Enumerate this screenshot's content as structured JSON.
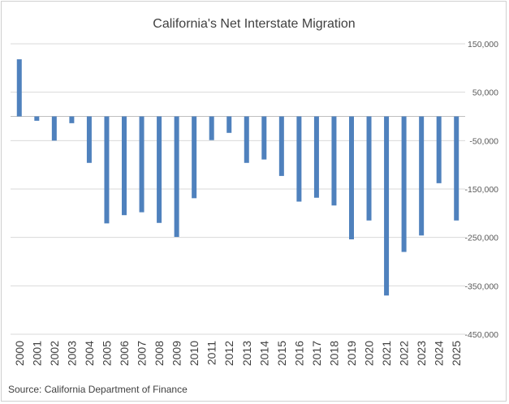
{
  "chart_data": {
    "type": "bar",
    "title": "California's Net Interstate Migration",
    "categories": [
      "2000",
      "2001",
      "2002",
      "2003",
      "2004",
      "2005",
      "2006",
      "2007",
      "2008",
      "2009",
      "2010",
      "2011",
      "2012",
      "2013",
      "2014",
      "2015",
      "2016",
      "2017",
      "2018",
      "2019",
      "2020",
      "2021",
      "2022",
      "2023",
      "2024",
      "2025"
    ],
    "values": [
      118000,
      -9000,
      -50000,
      -14000,
      -96000,
      -221000,
      -204000,
      -198000,
      -220000,
      -249000,
      -169000,
      -49000,
      -34000,
      -96000,
      -89000,
      -123000,
      -176000,
      -168000,
      -184000,
      -254000,
      -215000,
      -370000,
      -280000,
      -246000,
      -138000,
      -215000
    ],
    "ylim": [
      -450000,
      150000
    ],
    "yticks": [
      150000,
      50000,
      -50000,
      -150000,
      -250000,
      -350000,
      -450000
    ],
    "ytick_labels": [
      "150,000",
      "50,000",
      "-50,000",
      "-150,000",
      "-250,000",
      "-350,000",
      "-450,000"
    ],
    "grid": true,
    "y_axis_side": "right",
    "bar_color": "#4f81bd",
    "xlabel": "",
    "ylabel": ""
  },
  "source_note": "Source: California Department of Finance"
}
